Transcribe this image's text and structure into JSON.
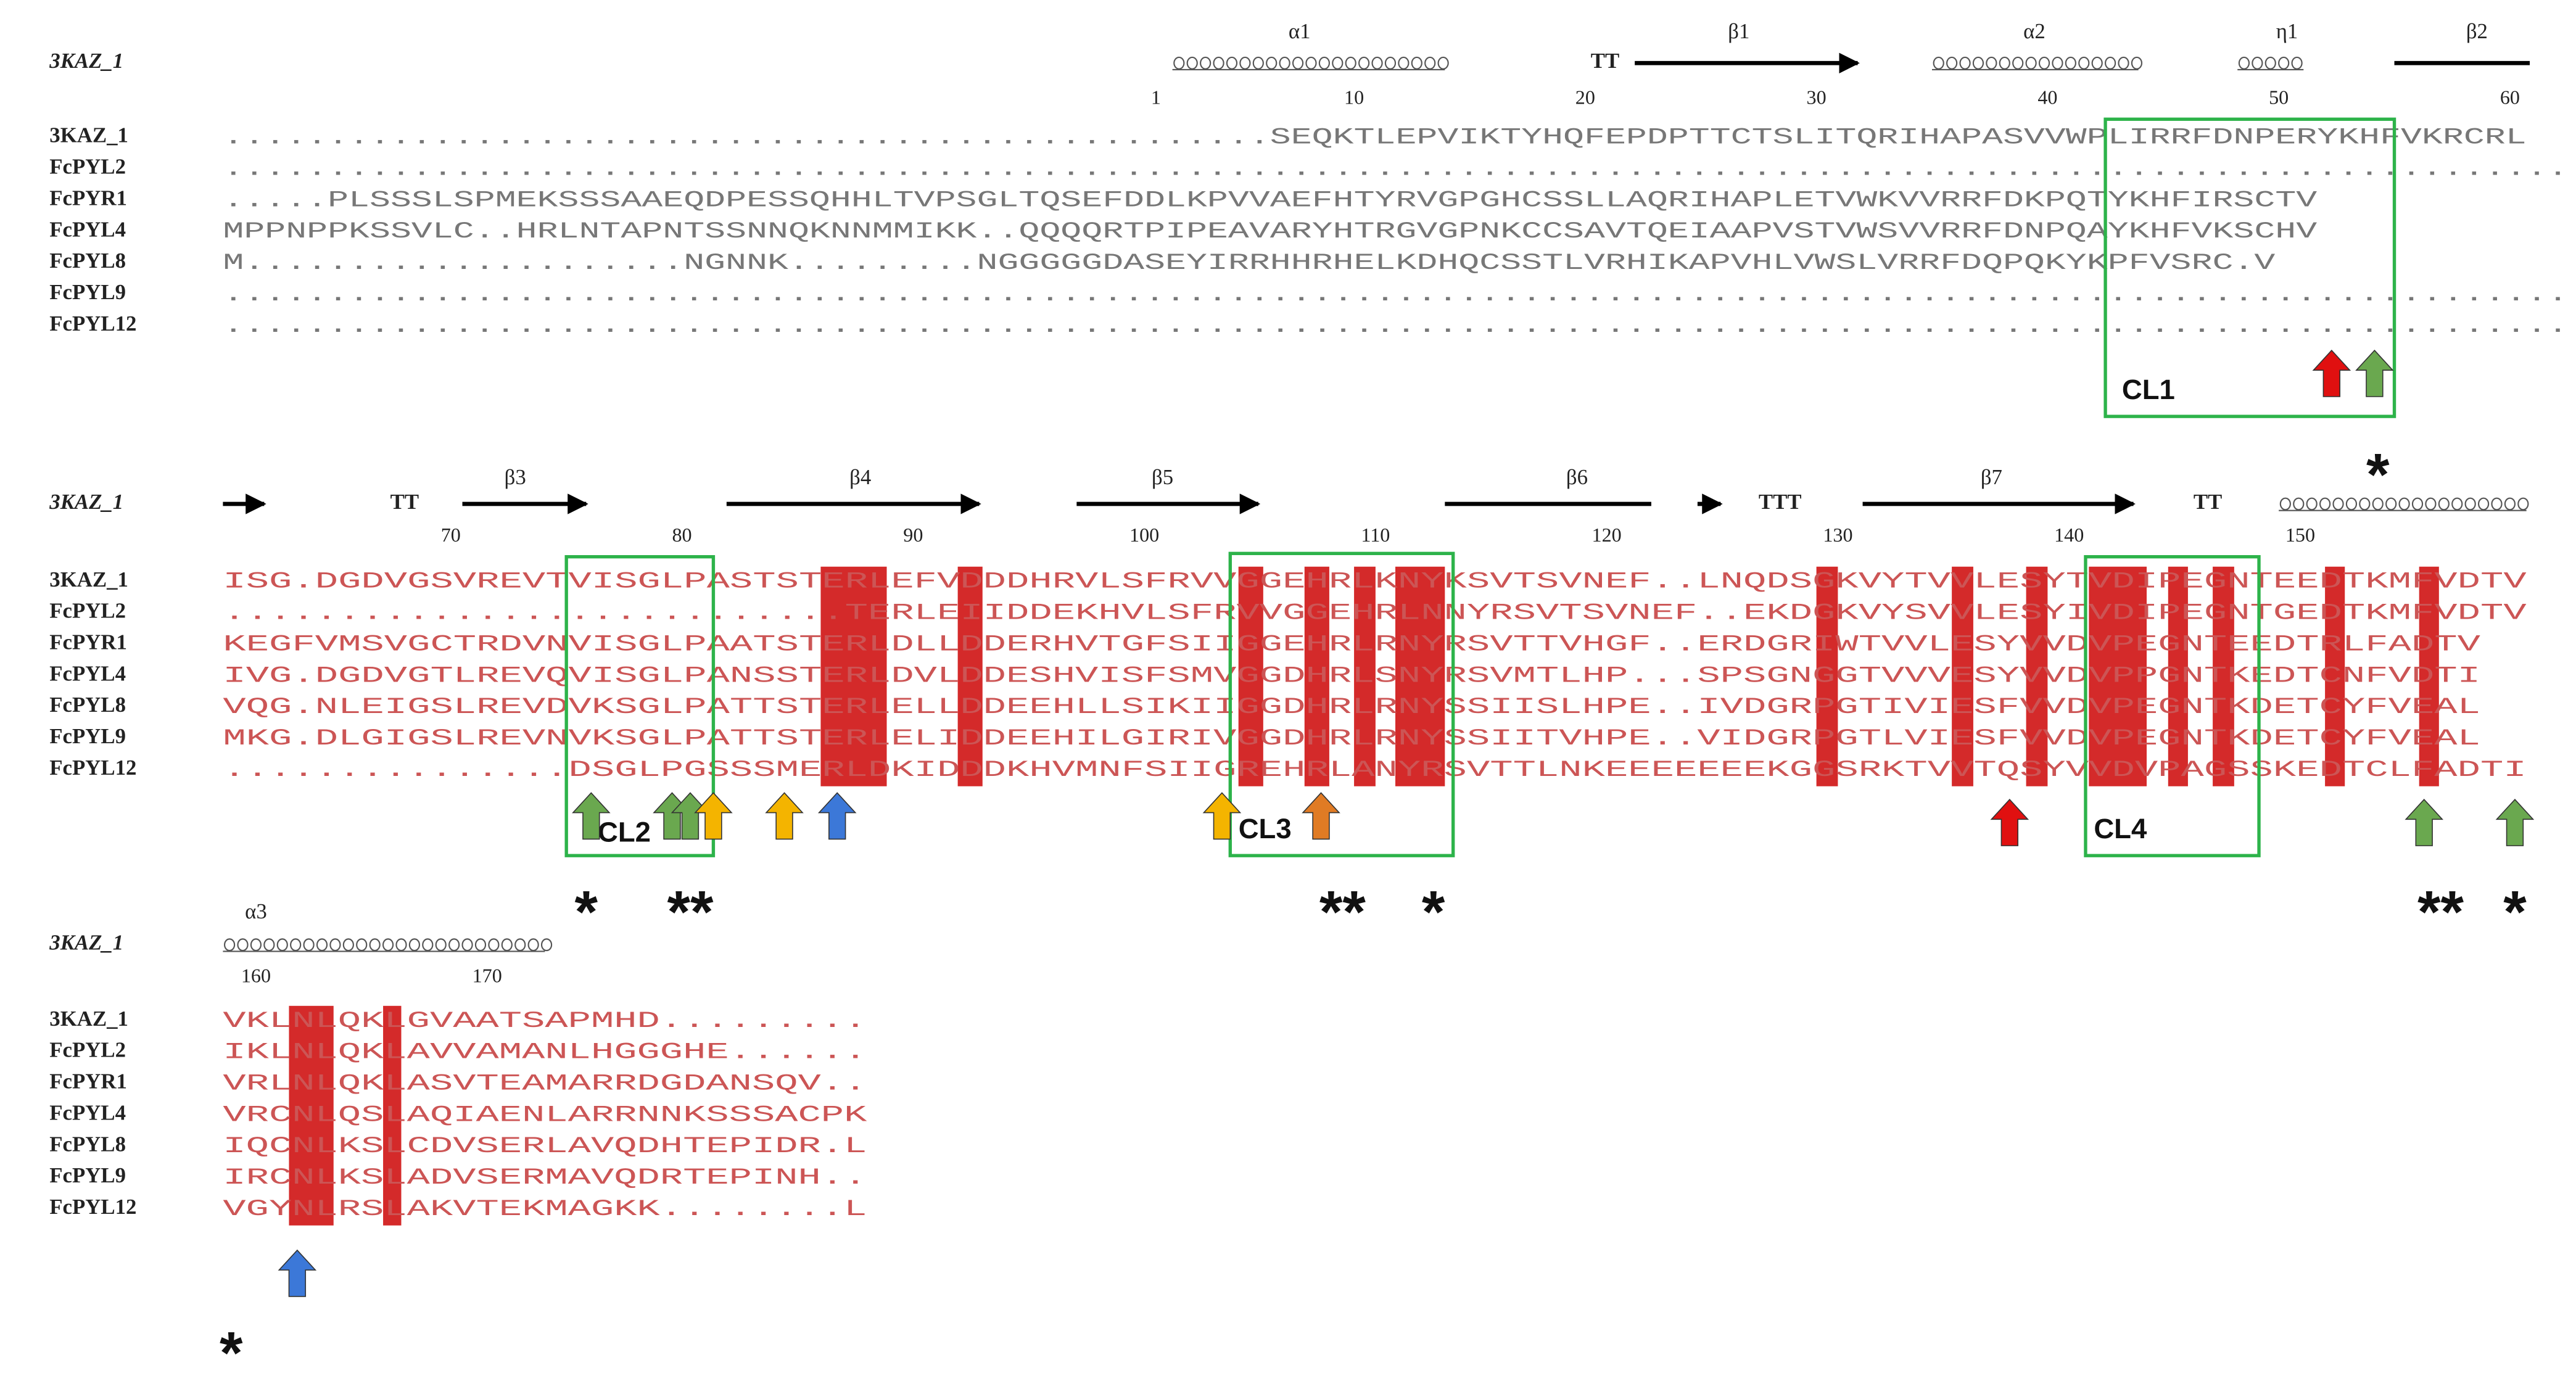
{
  "blocks": [
    {
      "header": "3KAZ_1",
      "structure": [
        "α1",
        "TT",
        "β1",
        "α2",
        "η1",
        "β2"
      ],
      "numbers": [
        1,
        10,
        20,
        30,
        40,
        50,
        60
      ],
      "rows": [
        {
          "name": "3KAZ_1",
          "sequence": "..................................................SEQKTLEPVIKTYHQFEPDPTTCTSLITQRIHAPASVVWPLIRRFDNPERYKHFVKRCRL"
        },
        {
          "name": "FcPYL2",
          "sequence": ".................................................................................................................."
        },
        {
          "name": "FcPYR1",
          "sequence": ".....PLSSSLSPMEKSSSAAEQDPESSQHHLTVPSGLTQSEFDDLKPVVAEFHTYRVGPGHCSSLLAQRIHAPLETVWKVVRRFDKPQTYKHFIRSCTV"
        },
        {
          "name": "FcPYL4",
          "sequence": "MPPNPPKSSVLC..HRLNTAPNTSSNNQKNNMMIKK..QQQQRTPIPEAVARYHTRGVGPNKCCSAVTQEIAAPVSTVWSVVRRFDNPQAYKHFVKSCHV"
        },
        {
          "name": "FcPYL8",
          "sequence": "M.....................NGNNK.........NGGGGGDASEYIRRHHRHELKDHQCSSTLVRHIKAPVHLVWSLVRRFDQPQKYKPFVSRC.V"
        },
        {
          "name": "FcPYL9",
          "sequence": ".................................................................................................................."
        },
        {
          "name": "FcPYL12",
          "sequence": ".................................................................................................................."
        }
      ]
    },
    {
      "header": "3KAZ_1",
      "structure": [
        "TT",
        "β3",
        "β4",
        "β5",
        "β6",
        "TTT",
        "β7",
        "TT"
      ],
      "numbers": [
        70,
        80,
        90,
        100,
        110,
        120,
        130,
        140,
        150
      ],
      "rows": [
        {
          "name": "3KAZ_1",
          "sequence": "ISG.DGDVGSVREVTVISGLPASTSTERLEFVDDDHRVLSFRVVGGEHRLKNYKSVTSVNEF..LNQDSGKVYTVVLESYTVDIPEGNTEEDTKMFVDTV"
        },
        {
          "name": "FcPYL2",
          "sequence": "...........................TERLEIIDDEKHVLSFRVVGGEHRLNNYRSVTSVNEF..EKDGKVYSVVLESYIVDIPEGNTGEDTKMFVDTV"
        },
        {
          "name": "FcPYR1",
          "sequence": "KEGFVMSVGCTRDVNVISGLPAATSTERLDLLDDERHVTGFSIIGGEHRLRNYRSVTTVHGF..ERDGRIWTVVLESYVVDVPEGNTEEDTRLFADTV"
        },
        {
          "name": "FcPYL4",
          "sequence": "IVG.DGDVGTLREVQVISGLPANSSTERLDVLDDESHVISFSMVGGDHRLSNYRSVMTLHP...SPSGNGGTVVVESYVVDVPPGNTKEDTCNFVDTI"
        },
        {
          "name": "FcPYL8",
          "sequence": "VQG.NLEIGSLREVDVKSGLPATTSTERLELLDDEEHLLSIKIIGGDHRLRNYSSIISLHPE..IVDGRPGTIVIESFVVDVPEGNTKDETCYFVEAL"
        },
        {
          "name": "FcPYL9",
          "sequence": "MKG.DLGIGSLREVNVKSGLPATTSTERLELIDDEEHILGIRIVGGDHRLRNYSSIITVHPE..VIDGRPGTLVIESFVVDVPEGNTKDETCYFVEAL"
        },
        {
          "name": "FcPYL12",
          "sequence": "...............DSGLPGSSSMERLDKIDDDKHVMNFSIIGREHRLANYRSVTTLNKEEEEEEEKGGSRKTVVTQSYVVDVPAGSSKEDTCLFADTI"
        }
      ]
    },
    {
      "header": "3KAZ_1",
      "structure": [
        "α3"
      ],
      "numbers": [
        160,
        170
      ],
      "rows": [
        {
          "name": "3KAZ_1",
          "sequence": "VKLNLQKLGVAATSAPMHD........."
        },
        {
          "name": "FcPYL2",
          "sequence": "IKLNLQKLAVVAMANLHGGGHE......"
        },
        {
          "name": "FcPYR1",
          "sequence": "VRLNLQKLASVTEAMARRDGDANSQV.."
        },
        {
          "name": "FcPYL4",
          "sequence": "VRCNLQSLAQIAENLARRNNKSSSACPK"
        },
        {
          "name": "FcPYL8",
          "sequence": "IQCNLKSLCDVSERLAVQDHTEPIDR.L"
        },
        {
          "name": "FcPYL9",
          "sequence": "IRCNLKSLADVSERMAVQDRTEPINH.."
        },
        {
          "name": "FcPYL12",
          "sequence": "VGYNLRSLAKVTEKMAGKK........L"
        }
      ]
    }
  ],
  "loops": [
    "CL1",
    "CL2",
    "CL3",
    "CL4"
  ],
  "asterisks": [
    "*",
    "*",
    "**",
    "**",
    "*",
    "**",
    "*",
    "*"
  ]
}
